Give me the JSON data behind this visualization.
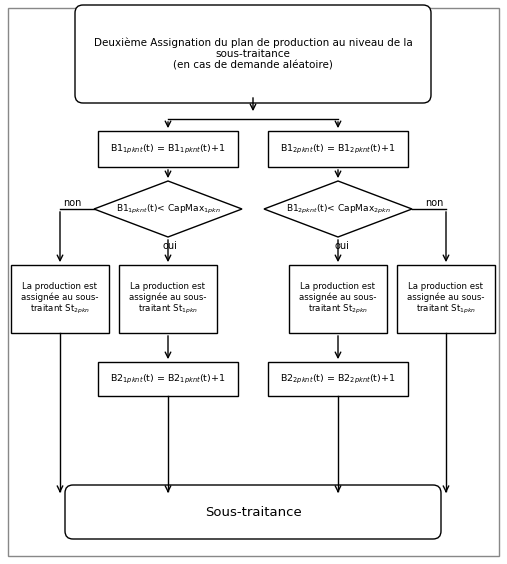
{
  "title": "Deuxième Assignation du plan de production au niveau de la\nsous-traitance\n(en cas de demande aléatoire)",
  "bottom_label": "Sous-traitance",
  "box1_left": "B1$_{1pknt}$(t) = B1$_{1pknt}$(t)+1",
  "box1_right": "B1$_{2pknt}$(t) = B1$_{2pknt}$(t)+1",
  "diamond1_left": "B1$_{1pknt}$(t)< CapMax$_{1pkn}$",
  "diamond1_right": "B1$_{2pknt}$(t)< CapMax$_{2pkn}$",
  "prod_box_ll": "La production est\nassignée au sous-\ntraitant St$_{2pkn}$",
  "prod_box_lc": "La production est\nassignée au sous-\ntraitant St$_{1pkn}$",
  "prod_box_rc": "La production est\nassignée au sous-\ntraitant St$_{2pkn}$",
  "prod_box_rr": "La production est\nassignée au sous-\ntraitant St$_{1pkn}$",
  "box2_left": "B2$_{1pknt}$(t) = B2$_{1pknt}$(t)+1",
  "box2_right": "B2$_{2pknt}$(t) = B2$_{2pknt}$(t)+1",
  "oui": "oui",
  "non": "non",
  "bg_color": "#ffffff",
  "font_size": 7.5,
  "small_font": 7.0
}
